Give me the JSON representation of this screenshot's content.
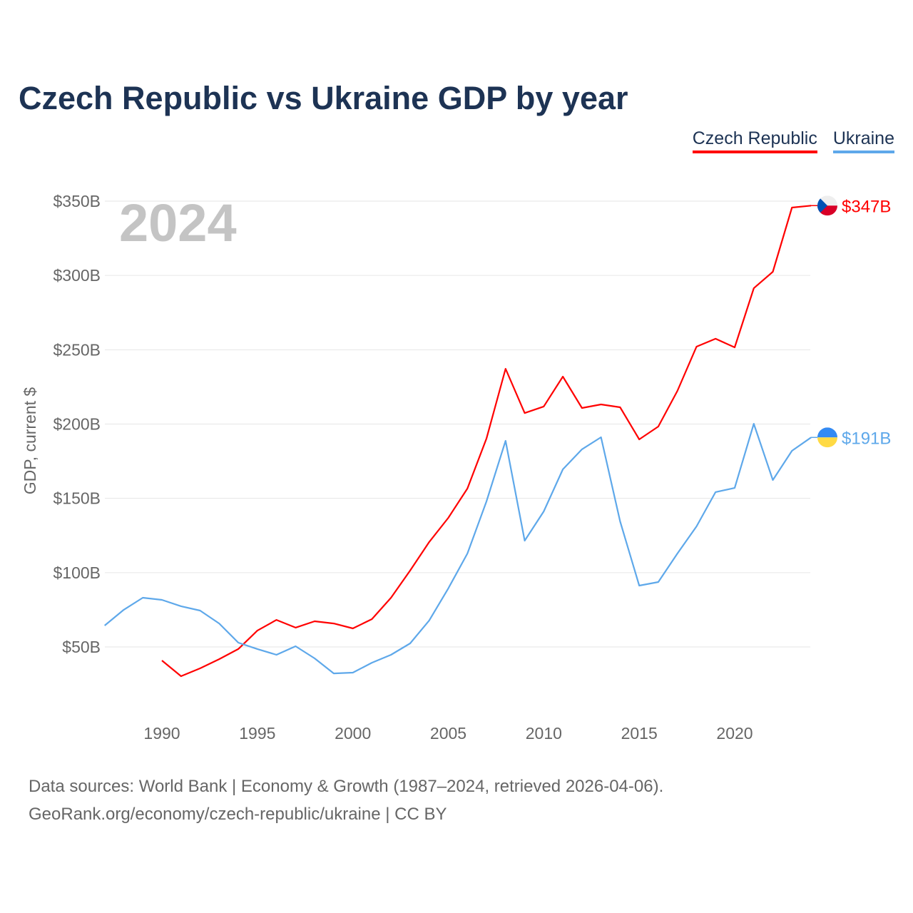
{
  "chart_data": {
    "type": "line",
    "title": "Czech Republic vs Ukraine GDP by year",
    "ylabel": "GDP, current $",
    "xlabel": "",
    "year_label": "2024",
    "xlim": [
      1987,
      2024
    ],
    "ylim": [
      0,
      370
    ],
    "x_ticks": [
      1990,
      1995,
      2000,
      2005,
      2010,
      2015,
      2020
    ],
    "y_ticks": [
      50,
      100,
      150,
      200,
      250,
      300,
      350
    ],
    "y_tick_labels": [
      "$50B",
      "$100B",
      "$150B",
      "$200B",
      "$250B",
      "$300B",
      "$350B"
    ],
    "grid": true,
    "legend_position": "top-right",
    "series": [
      {
        "name": "Czech Republic",
        "color": "#ff0000",
        "end_label": "$347B",
        "flag": "czech-flag",
        "x": [
          1990,
          1991,
          1992,
          1993,
          1994,
          1995,
          1996,
          1997,
          1998,
          1999,
          2000,
          2001,
          2002,
          2003,
          2004,
          2005,
          2006,
          2007,
          2008,
          2009,
          2010,
          2011,
          2012,
          2013,
          2014,
          2015,
          2016,
          2017,
          2018,
          2019,
          2020,
          2021,
          2022,
          2023,
          2024
        ],
        "values": [
          40.9,
          30.3,
          35.6,
          41.8,
          48.6,
          61.0,
          68.2,
          63.0,
          67.3,
          65.8,
          62.5,
          68.7,
          83.1,
          101.4,
          120.6,
          136.9,
          156.6,
          190.2,
          237.2,
          207.4,
          211.8,
          231.9,
          210.8,
          213.2,
          211.3,
          189.7,
          198.3,
          222.3,
          252.1,
          257.4,
          251.6,
          291.4,
          302.5,
          345.7,
          347.0
        ]
      },
      {
        "name": "Ukraine",
        "color": "#5ea8ea",
        "end_label": "$191B",
        "flag": "ukraine-flag",
        "x": [
          1987,
          1988,
          1989,
          1990,
          1991,
          1992,
          1993,
          1994,
          1995,
          1996,
          1997,
          1998,
          1999,
          2000,
          2001,
          2002,
          2003,
          2004,
          2005,
          2006,
          2007,
          2008,
          2009,
          2010,
          2011,
          2012,
          2013,
          2014,
          2015,
          2016,
          2017,
          2018,
          2019,
          2020,
          2021,
          2022,
          2023,
          2024
        ],
        "values": [
          64.4,
          75.0,
          83.1,
          81.7,
          77.4,
          74.5,
          65.8,
          52.9,
          48.6,
          44.7,
          50.5,
          42.3,
          32.2,
          32.7,
          39.4,
          44.7,
          52.4,
          67.8,
          89.4,
          112.9,
          147.9,
          188.7,
          121.5,
          141.2,
          169.5,
          183.0,
          191.1,
          134.5,
          91.3,
          93.7,
          112.9,
          131.1,
          154.2,
          157.0,
          200.2,
          162.3,
          182.0,
          191.0
        ]
      }
    ]
  },
  "footer": {
    "line1": "Data sources: World Bank | Economy & Growth (1987–2024, retrieved 2026-04-06).",
    "line2": "GeoRank.org/economy/czech-republic/ukraine | CC BY"
  }
}
